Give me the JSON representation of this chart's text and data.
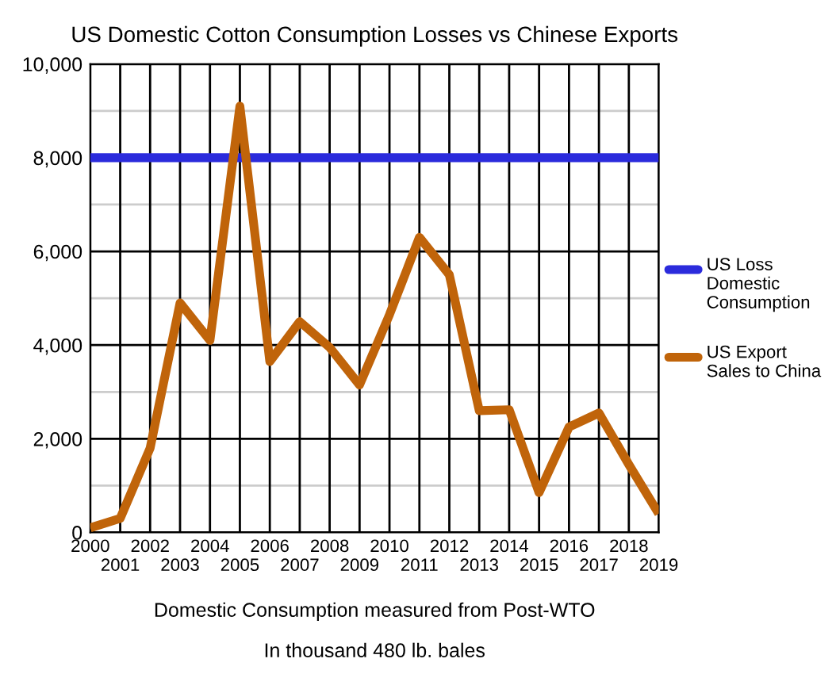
{
  "chart_data": {
    "type": "line",
    "title": "US Domestic Cotton Consumption Losses vs Chinese Exports",
    "categories": [
      "2000",
      "2001",
      "2002",
      "2003",
      "2004",
      "2005",
      "2006",
      "2007",
      "2008",
      "2009",
      "2010",
      "2011",
      "2012",
      "2013",
      "2014",
      "2015",
      "2016",
      "2017",
      "2018",
      "2019"
    ],
    "series": [
      {
        "name": "US Loss Domestic Consumption",
        "color": "#2b2bdc",
        "values": [
          8000,
          8000,
          8000,
          8000,
          8000,
          8000,
          8000,
          8000,
          8000,
          8000,
          8000,
          8000,
          8000,
          8000,
          8000,
          8000,
          8000,
          8000,
          8000,
          8000
        ]
      },
      {
        "name": "US Export Sales to China",
        "color": "#c0640a",
        "values": [
          100,
          300,
          1800,
          4900,
          4100,
          9100,
          3650,
          4500,
          3950,
          3150,
          4650,
          6300,
          5500,
          2600,
          2620,
          850,
          2250,
          2550,
          1450,
          400
        ]
      }
    ],
    "ylim": [
      0,
      10000
    ],
    "yticks": [
      0,
      {
        "value": 1000,
        "label": null
      },
      {
        "value": 2000,
        "label": "2,000"
      },
      {
        "value": 3000,
        "label": null
      },
      {
        "value": 4000,
        "label": "4,000"
      },
      {
        "value": 5000,
        "label": null
      },
      {
        "value": 6000,
        "label": "6,000"
      },
      {
        "value": 7000,
        "label": null
      },
      {
        "value": 8000,
        "label": "8,000"
      },
      {
        "value": 9000,
        "label": null
      },
      {
        "value": 10000,
        "label": "10,000"
      }
    ],
    "grid": true,
    "legend": "right",
    "marker": "none",
    "line_style": "solid",
    "annotations": [
      "Domestic Consumption measured from Post-WTO",
      "In thousand 480 lb. bales"
    ]
  }
}
